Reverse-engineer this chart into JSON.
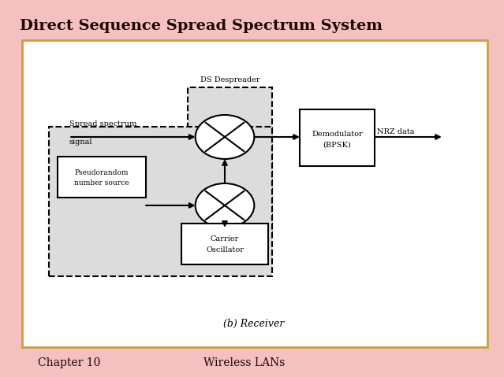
{
  "title": "Direct Sequence Spread Spectrum System",
  "footer_left": "Chapter 10",
  "footer_right": "Wireless LANs",
  "bg_color": "#F4C0C0",
  "panel_bg": "#FFFFFF",
  "panel_border": "#C8A040",
  "gray_fill": "#DCDCDC",
  "title_fontsize": 14,
  "footer_fontsize": 10,
  "label_fontsize": 7.5,
  "small_fontsize": 7
}
